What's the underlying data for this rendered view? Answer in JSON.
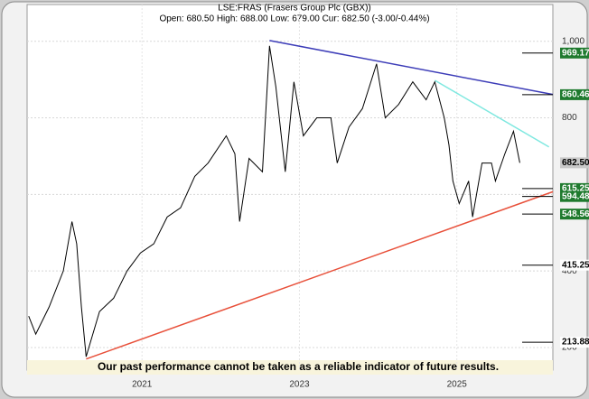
{
  "chart_data": {
    "type": "line",
    "title": "LSE:FRAS (Frasers Group Plc (GBX))",
    "subtitle": "Open: 680.50 High: 688.00 Low: 679.00 Cur: 682.50 (-3.00/-0.44%)",
    "disclaimer": "Our past performance cannot be taken as a reliable indicator of future results.",
    "xlim": [
      2019.54,
      2026.22
    ],
    "xticks": [
      2021,
      2023,
      2025
    ],
    "ylim": [
      141,
      1096
    ],
    "yticks": [
      {
        "value": 1000,
        "label": "1,000"
      },
      800,
      600,
      400,
      200
    ],
    "grid": true,
    "series": [
      {
        "name": "FRAS",
        "color": "#000000",
        "x": [
          2019.56,
          2019.65,
          2019.82,
          2020.0,
          2020.11,
          2020.17,
          2020.23,
          2020.29,
          2020.46,
          2020.64,
          2020.81,
          2020.98,
          2021.15,
          2021.32,
          2021.49,
          2021.67,
          2021.84,
          2022.07,
          2022.18,
          2022.24,
          2022.36,
          2022.53,
          2022.62,
          2022.7,
          2022.82,
          2022.93,
          2023.05,
          2023.22,
          2023.4,
          2023.48,
          2023.63,
          2023.8,
          2023.98,
          2024.09,
          2024.26,
          2024.44,
          2024.61,
          2024.72,
          2024.84,
          2024.9,
          2024.95,
          2025.03,
          2025.15,
          2025.2,
          2025.32,
          2025.44,
          2025.49,
          2025.61,
          2025.72,
          2025.8
        ],
        "values": [
          282,
          235,
          306,
          400,
          529,
          471,
          306,
          176,
          294,
          329,
          400,
          447,
          471,
          541,
          565,
          647,
          682,
          753,
          706,
          529,
          694,
          659,
          988,
          882,
          659,
          894,
          753,
          800,
          800,
          682,
          776,
          824,
          941,
          800,
          835,
          894,
          847,
          894,
          800,
          729,
          635,
          576,
          635,
          541,
          682,
          682,
          635,
          706,
          765,
          682.5
        ]
      }
    ],
    "trendlines": [
      {
        "color": "#3d3db8",
        "x": [
          2022.62,
          2026.22
        ],
        "values": [
          1002,
          861
        ]
      },
      {
        "color": "#e8503a",
        "x": [
          2020.29,
          2026.22
        ],
        "values": [
          170,
          607
        ]
      },
      {
        "color": "#7fe8e0",
        "x": [
          2024.72,
          2026.17
        ],
        "values": [
          898,
          724
        ]
      }
    ],
    "levels": [
      {
        "label": "969.17",
        "value": 969.17,
        "color": "#1f7a2e"
      },
      {
        "label": "860.46",
        "value": 860.46,
        "color": "#1f7a2e"
      },
      {
        "label": "682.50",
        "value": 682.5,
        "color": "#c8c8c8"
      },
      {
        "label": "615.25",
        "value": 615.25,
        "color": "#1f7a2e"
      },
      {
        "label": "594.48",
        "value": 594.48,
        "color": "#1f7a2e"
      },
      {
        "label": "548.56",
        "value": 548.56,
        "color": "#1f7a2e"
      },
      {
        "label": "415.25",
        "value": 415.25,
        "color": "#ffffff"
      },
      {
        "label": "213.88",
        "value": 213.88,
        "color": "#ffffff"
      }
    ]
  }
}
